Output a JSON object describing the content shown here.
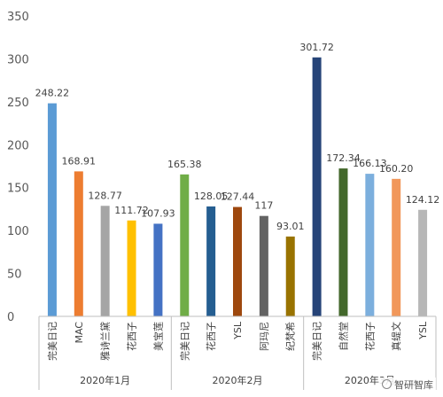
{
  "chart_data": {
    "type": "bar",
    "title": "",
    "xlabel": "",
    "ylabel": "",
    "ylim": [
      0,
      350
    ],
    "yticks": [
      0,
      50,
      100,
      150,
      200,
      250,
      300,
      350
    ],
    "grid": false,
    "legend": "none",
    "groups": [
      {
        "name": "2020年1月",
        "bars": [
          {
            "category": "完美日记",
            "value": 248.22,
            "label": "248.22",
            "color": "#5B9BD5"
          },
          {
            "category": "MAC",
            "value": 168.91,
            "label": "168.91",
            "color": "#ED7D31"
          },
          {
            "category": "雅诗兰黛",
            "value": 128.77,
            "label": "128.77",
            "color": "#A5A5A5"
          },
          {
            "category": "花西子",
            "value": 111.72,
            "label": "111.72",
            "color": "#FFC000"
          },
          {
            "category": "美宝莲",
            "value": 107.93,
            "label": "107.93",
            "color": "#4472C4"
          }
        ]
      },
      {
        "name": "2020年2月",
        "bars": [
          {
            "category": "完美日记",
            "value": 165.38,
            "label": "165.38",
            "color": "#70AD47"
          },
          {
            "category": "花西子",
            "value": 128.05,
            "label": "128.05",
            "color": "#255E91"
          },
          {
            "category": "YSL",
            "value": 127.44,
            "label": "127.44",
            "color": "#9E480E"
          },
          {
            "category": "阿玛尼",
            "value": 117,
            "label": "117",
            "color": "#636363"
          },
          {
            "category": "纪梵希",
            "value": 93.01,
            "label": "93.01",
            "color": "#997300"
          }
        ]
      },
      {
        "name": "2020年3月",
        "bars": [
          {
            "category": "完美日记",
            "value": 301.72,
            "label": "301.72",
            "color": "#264478"
          },
          {
            "category": "自然堂",
            "value": 172.34,
            "label": "172.34",
            "color": "#43682B"
          },
          {
            "category": "花西子",
            "value": 166.13,
            "label": "166.13",
            "color": "#7CAFDD"
          },
          {
            "category": "真缇文",
            "value": 160.2,
            "label": "160.20",
            "color": "#F1975A"
          },
          {
            "category": "YSL",
            "value": 124.12,
            "label": "124.12",
            "color": "#B7B7B7"
          }
        ]
      }
    ]
  },
  "watermark": {
    "text": "智研智库",
    "icon": "circle-logo-icon"
  }
}
